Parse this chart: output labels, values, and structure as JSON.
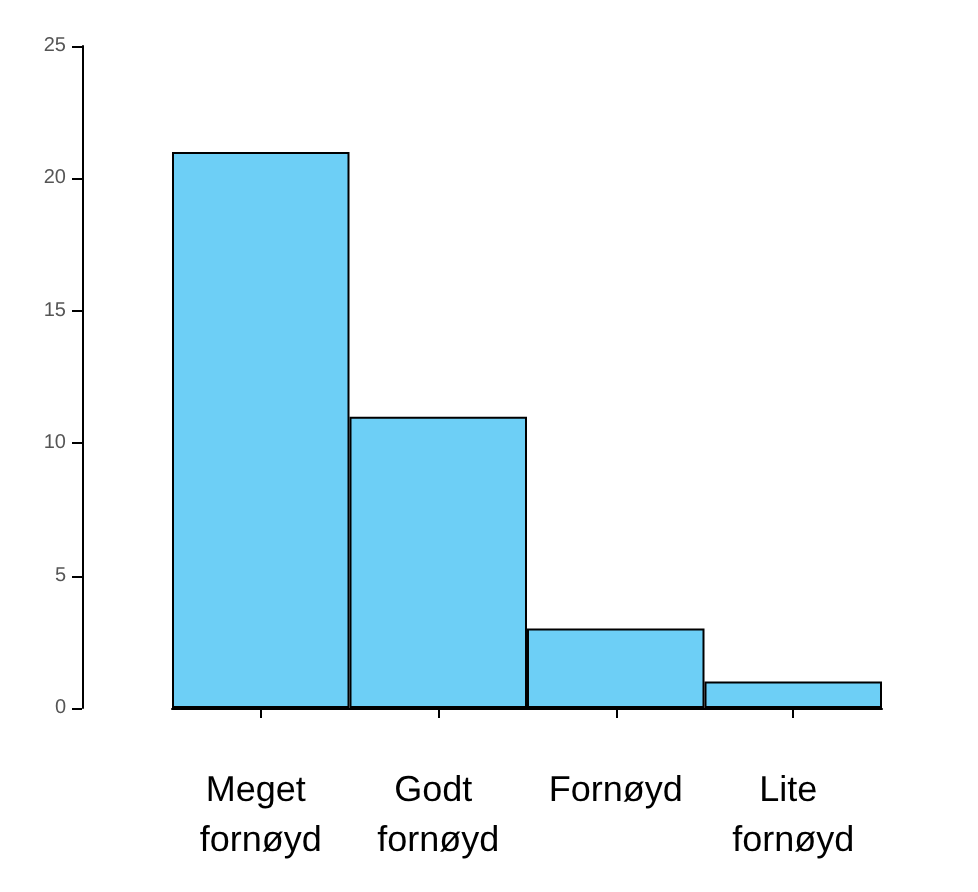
{
  "chart_data": {
    "type": "bar",
    "categories": [
      "Meget fornøyd",
      "Godt fornøyd",
      "Fornøyd",
      "Lite fornøyd"
    ],
    "values": [
      21,
      11,
      3,
      1
    ],
    "color": "#6dcff6",
    "ylim": [
      0,
      25
    ],
    "yticks": [
      0,
      5,
      10,
      15,
      20,
      25
    ]
  }
}
